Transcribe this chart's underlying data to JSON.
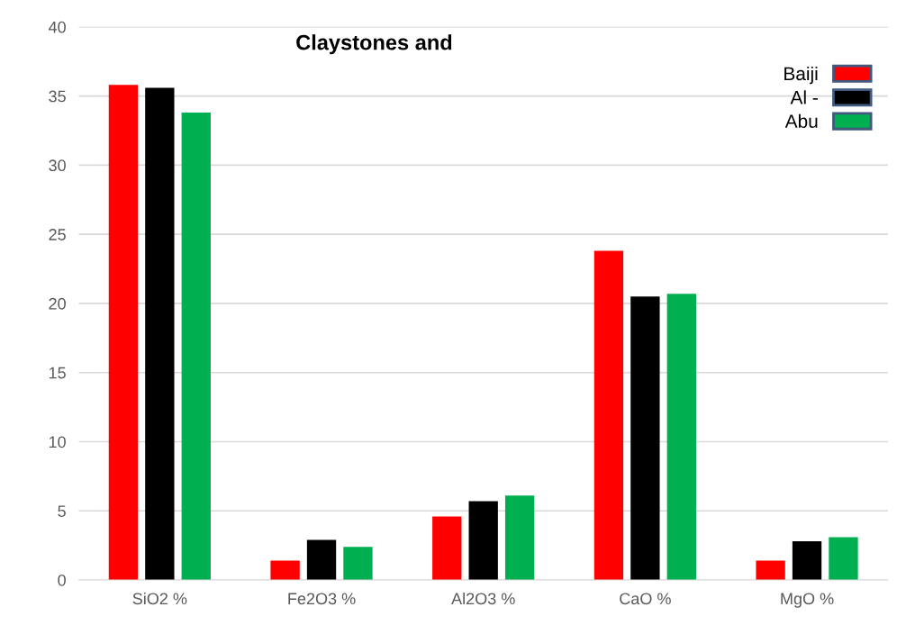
{
  "chart_data": {
    "type": "bar",
    "title": "Claystones and",
    "categories": [
      "SiO2 %",
      "Fe2O3 %",
      "Al2O3 %",
      "CaO %",
      "MgO %"
    ],
    "series": [
      {
        "name": "Baiji",
        "color": "#ff0000",
        "values": [
          35.8,
          1.4,
          4.6,
          23.8,
          1.4
        ]
      },
      {
        "name": "Al -",
        "color": "#000000",
        "values": [
          35.6,
          2.9,
          5.7,
          20.5,
          2.8
        ]
      },
      {
        "name": "Abu",
        "color": "#00b050",
        "values": [
          33.8,
          2.4,
          6.1,
          20.7,
          3.1
        ]
      }
    ],
    "ylim": [
      0,
      40
    ],
    "yticks": [
      0,
      5,
      10,
      15,
      20,
      25,
      30,
      35,
      40
    ],
    "grid": "y",
    "legend": "top right"
  }
}
